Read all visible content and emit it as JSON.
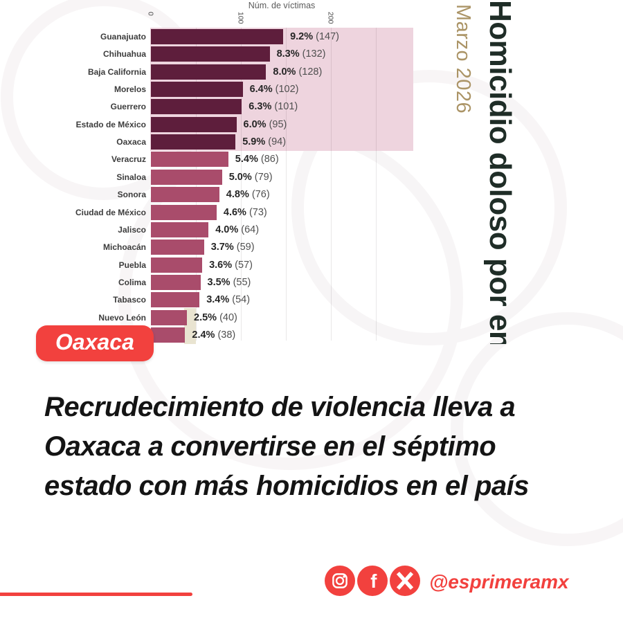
{
  "chart": {
    "axis_title": "Núm. de víctimas",
    "vertical_title": "Homicidio doloso por en",
    "vertical_subtitle": "Marzo 2026"
  },
  "chart_data": {
    "type": "bar",
    "orientation": "horizontal",
    "title": "Homicidio doloso por en",
    "period": "Marzo 2026",
    "xlabel": "Núm. de víctimas",
    "xlim": [
      0,
      290
    ],
    "ticks": [
      0,
      100,
      200
    ],
    "minor_gridlines": [
      50,
      100,
      150,
      200,
      250
    ],
    "highlight_count": 7,
    "categories": [
      "Guanajuato",
      "Chihuahua",
      "Baja California",
      "Morelos",
      "Guerrero",
      "Estado de México",
      "Oaxaca",
      "Veracruz",
      "Sinaloa",
      "Sonora",
      "Ciudad de México",
      "Jalisco",
      "Michoacán",
      "Puebla",
      "Colima",
      "Tabasco",
      "Nuevo León",
      ""
    ],
    "values": [
      147,
      132,
      128,
      102,
      101,
      95,
      94,
      86,
      79,
      76,
      73,
      64,
      59,
      57,
      55,
      54,
      40,
      38
    ],
    "pct_labels": [
      "9.2%",
      "8.3%",
      "8.0%",
      "6.4%",
      "6.3%",
      "6.0%",
      "5.9%",
      "5.4%",
      "5.0%",
      "4.8%",
      "4.6%",
      "4.0%",
      "3.7%",
      "3.6%",
      "3.5%",
      "3.4%",
      "2.5%",
      "2.4%"
    ],
    "count_labels": [
      "(147)",
      "(132)",
      "(128)",
      "(102)",
      "(101)",
      "(95)",
      "(94)",
      "(86)",
      "(79)",
      "(76)",
      "(73)",
      "(64)",
      "(59)",
      "(57)",
      "(55)",
      "(54)",
      "(40)",
      "(38)"
    ]
  },
  "badge": {
    "label": "Oaxaca"
  },
  "headline": {
    "lines": [
      "Recrudecimiento de violencia lleva a",
      "Oaxaca a convertirse en el séptimo",
      "estado con más homicidios en el país"
    ]
  },
  "footer": {
    "handle": "@esprimeramx"
  },
  "colors": {
    "accent_red": "#f2413e",
    "bar_dark": "#5e1e3c",
    "bar_light": "#a94c6b",
    "highlight_pink": "#eed4de",
    "title_dark": "#1f2d27",
    "subtitle_tan": "#ab9466"
  }
}
